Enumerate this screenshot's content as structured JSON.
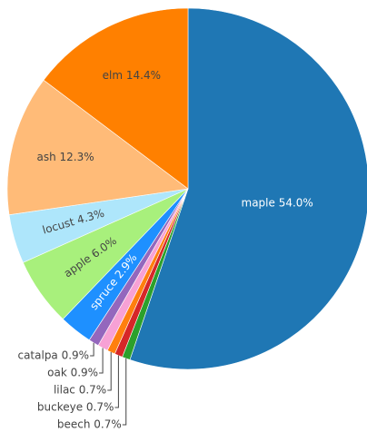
{
  "chart_data": {
    "type": "pie",
    "values": [
      54.0,
      0.7,
      0.7,
      0.7,
      0.9,
      0.9,
      2.9,
      6.0,
      4.3,
      12.3,
      14.4
    ],
    "value_labels": [
      "maple 54.0%",
      "beech 0.7%",
      "buckeye 0.7%",
      "lilac 0.7%",
      "oak 0.9%",
      "catalpa 0.9%",
      "spruce 2.9%",
      "apple 6.0%",
      "locust 4.3%",
      "ash 12.3%",
      "elm 14.4%"
    ],
    "colors": [
      "#1f77b4",
      "#2ca02c",
      "#d62728",
      "#ff7f0e",
      "#f7a1d5",
      "#9467bd",
      "#1e90ff",
      "#a8f07c",
      "#aee6fb",
      "#ffbb78",
      "#ff8000"
    ]
  }
}
